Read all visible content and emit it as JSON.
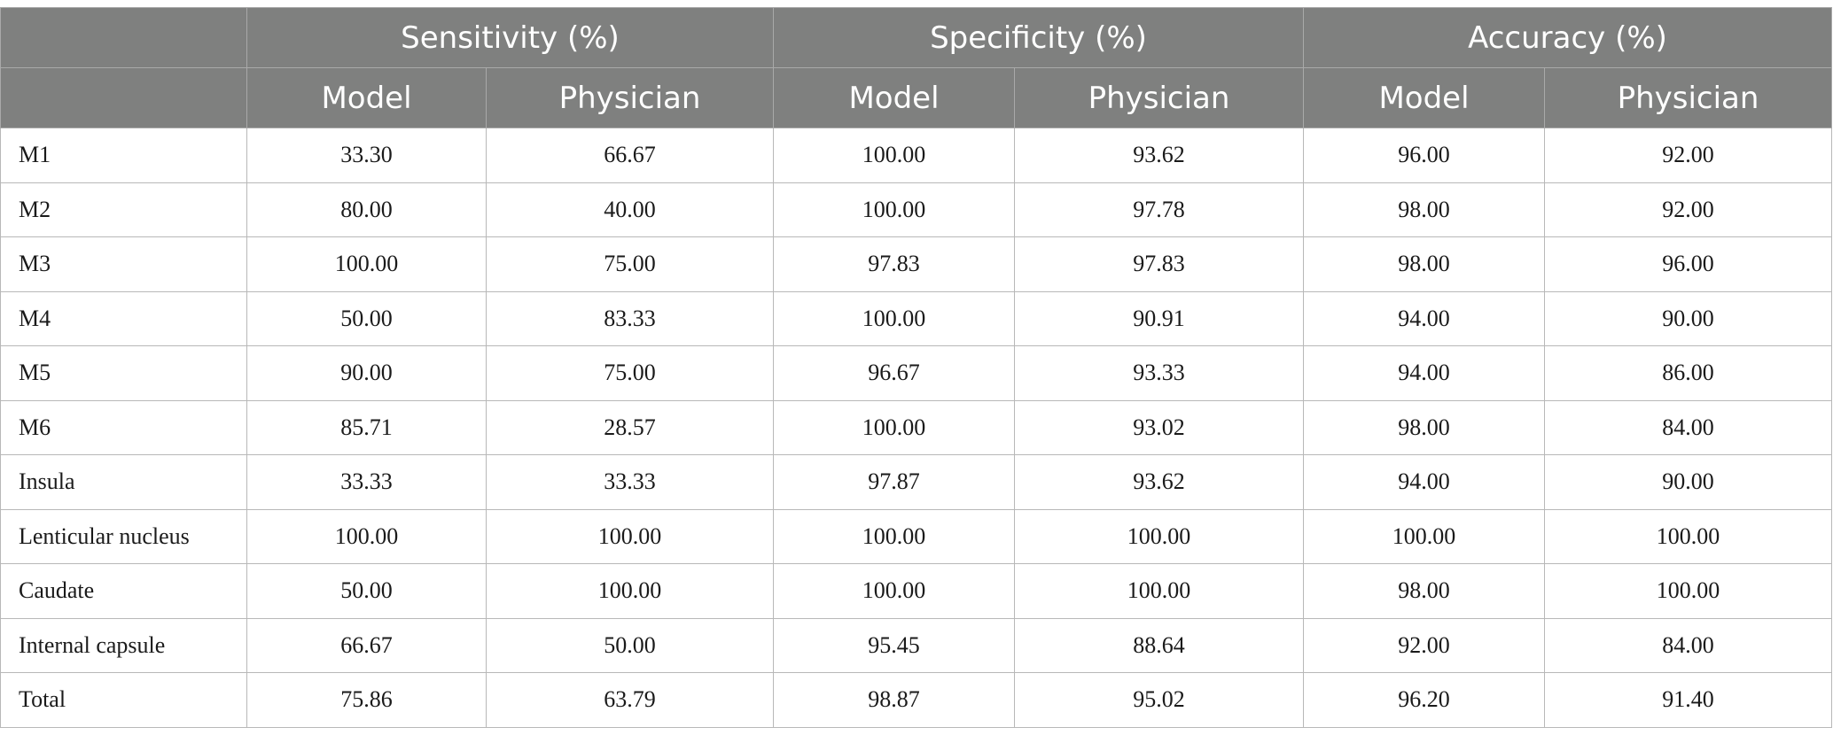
{
  "table": {
    "group_headers": [
      "",
      "Sensitivity (%)",
      "Specificity (%)",
      "Accuracy (%)"
    ],
    "sub_headers": [
      "",
      "Model",
      "Physician",
      "Model",
      "Physician",
      "Model",
      "Physician"
    ],
    "rows": [
      [
        "M1",
        "33.30",
        "66.67",
        "100.00",
        "93.62",
        "96.00",
        "92.00"
      ],
      [
        "M2",
        "80.00",
        "40.00",
        "100.00",
        "97.78",
        "98.00",
        "92.00"
      ],
      [
        "M3",
        "100.00",
        "75.00",
        "97.83",
        "97.83",
        "98.00",
        "96.00"
      ],
      [
        "M4",
        "50.00",
        "83.33",
        "100.00",
        "90.91",
        "94.00",
        "90.00"
      ],
      [
        "M5",
        "90.00",
        "75.00",
        "96.67",
        "93.33",
        "94.00",
        "86.00"
      ],
      [
        "M6",
        "85.71",
        "28.57",
        "100.00",
        "93.02",
        "98.00",
        "84.00"
      ],
      [
        "Insula",
        "33.33",
        "33.33",
        "97.87",
        "93.62",
        "94.00",
        "90.00"
      ],
      [
        "Lenticular nucleus",
        "100.00",
        "100.00",
        "100.00",
        "100.00",
        "100.00",
        "100.00"
      ],
      [
        "Caudate",
        "50.00",
        "100.00",
        "100.00",
        "100.00",
        "98.00",
        "100.00"
      ],
      [
        "Internal capsule",
        "66.67",
        "50.00",
        "95.45",
        "88.64",
        "92.00",
        "84.00"
      ],
      [
        "Total",
        "75.86",
        "63.79",
        "98.87",
        "95.02",
        "96.20",
        "91.40"
      ]
    ]
  }
}
